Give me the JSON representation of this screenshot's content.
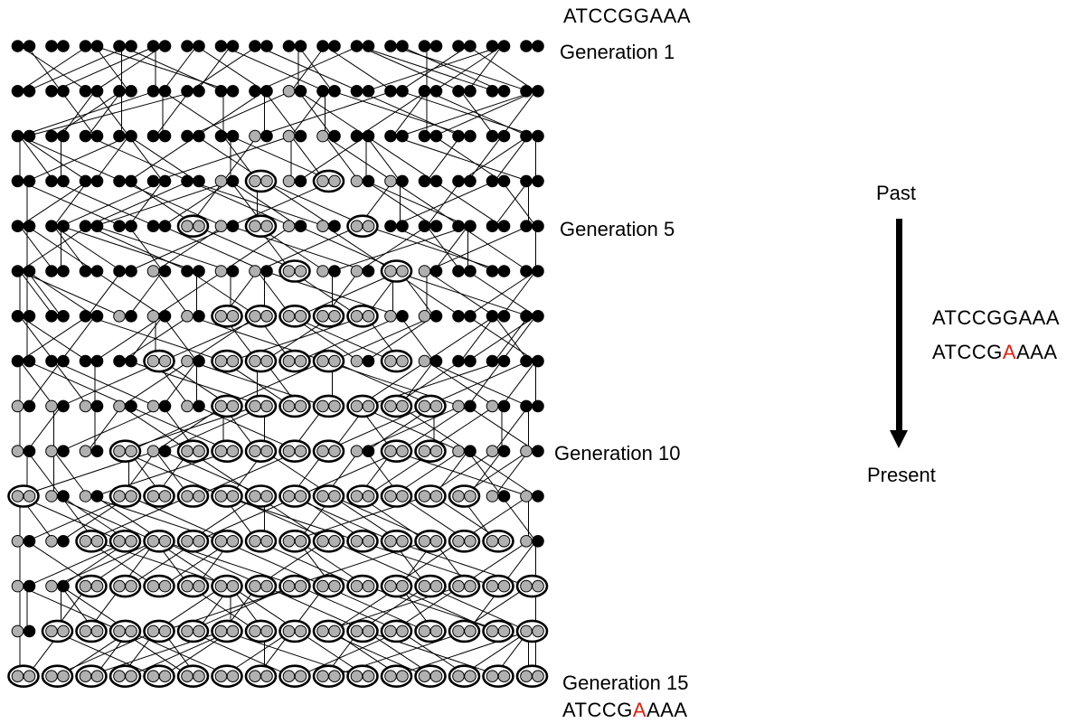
{
  "sequences": {
    "ancestral": "ATCCGGAAA",
    "compare_top": "ATCCGGAAA",
    "compare_bottom_prefix": "ATCCG",
    "compare_bottom_mutation": "A",
    "compare_bottom_suffix": "AAA",
    "present_prefix": "ATCCG",
    "present_mutation": "A",
    "present_suffix": "AAA"
  },
  "generation_labels": {
    "gen1": "Generation 1",
    "gen5": "Generation 5",
    "gen10": "Generation 10",
    "gen15": "Generation 15"
  },
  "timeline": {
    "past": "Past",
    "present": "Present"
  },
  "colors": {
    "wildtype": "#000000",
    "mutant": "#b0b0b0",
    "mutation_highlight": "#e02010",
    "edge": "#000000"
  },
  "chart_data": {
    "type": "pedigree",
    "individuals_per_generation": 16,
    "generations": 15,
    "legend": {
      "B": "two wild-type alleles (black)",
      "H": "one wild-type + one mutant allele (black/grey)",
      "M": "two mutant alleles (grey, circled)"
    },
    "rows": [
      "BBBBBBBBBBBBBBBB",
      "BBBBBBBBHBBBBBBB",
      "BBBBBBBHHHBBBBBB",
      "BBBBBBHMHMHHBBBB",
      "BBBBBMHMHHMBBBBB",
      "BBBBHBHHMHHMHBBB",
      "BBBHHHMMMMMHHBBB",
      "BBBBMHMMMMHMHBBB",
      "HHHHHHMMMMMMMHHB",
      "HHHMHMMMMMHMMHHH",
      "MHHMMMMMMMMMMMHH",
      "HHMMMMMMMMMMMMMH",
      "HHMMMMMMMMMMMMMM",
      "HMMMMMMMMMMMMMMM",
      "MMMMMMMMMMMMMMMM"
    ]
  }
}
